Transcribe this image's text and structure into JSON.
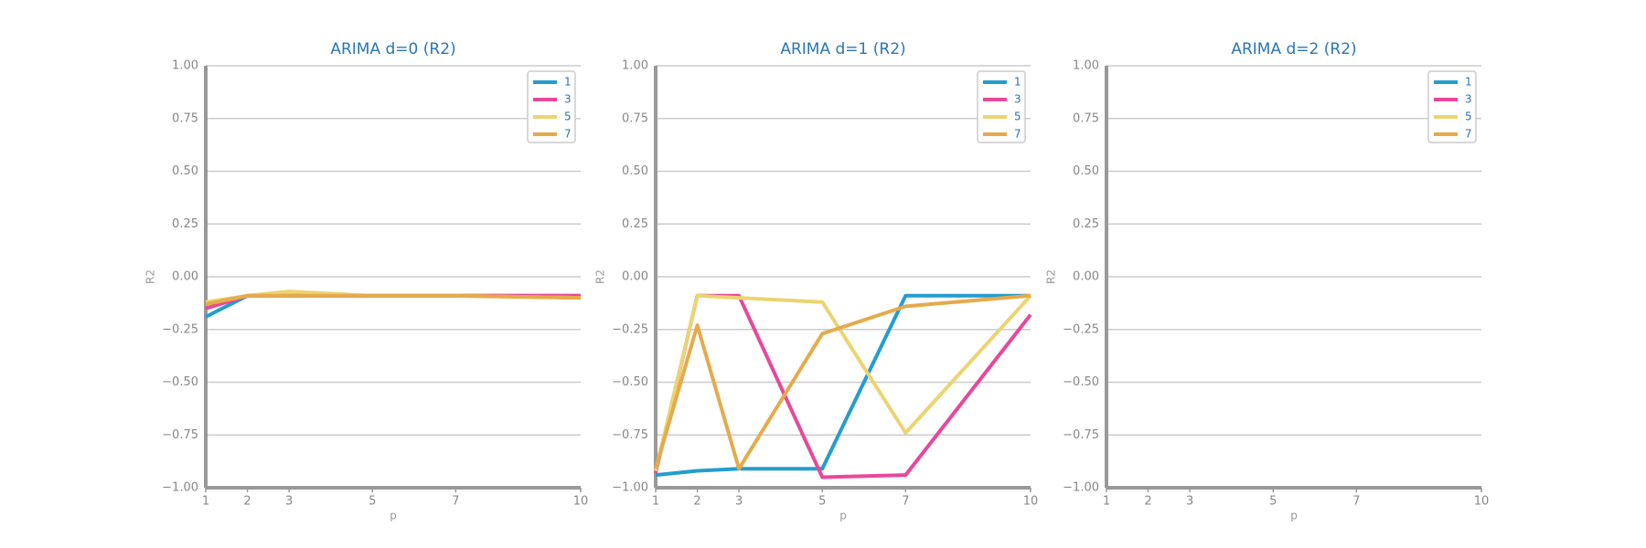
{
  "chart_data": [
    {
      "type": "line",
      "title": "ARIMA d=0 (R2)",
      "x_label": "p",
      "y_label": "R2",
      "x": [
        1,
        2,
        3,
        5,
        7,
        10
      ],
      "xlim": [
        1,
        10
      ],
      "xticks": [
        1,
        2,
        3,
        5,
        7,
        10
      ],
      "ylim": [
        -1,
        1
      ],
      "yticks": [
        {
          "value": -1,
          "label": "−1.00"
        },
        {
          "value": -0.75,
          "label": "−0.75"
        },
        {
          "value": -0.5,
          "label": "−0.50"
        },
        {
          "value": -0.25,
          "label": "−0.25"
        },
        {
          "value": 0,
          "label": "0.00"
        },
        {
          "value": 0.25,
          "label": "0.25"
        },
        {
          "value": 0.5,
          "label": "0.50"
        },
        {
          "value": 0.75,
          "label": "0.75"
        },
        {
          "value": 1,
          "label": "1.00"
        }
      ],
      "grid": true,
      "legend": "upper right",
      "series": [
        {
          "name": "1",
          "color": "#239dcf",
          "values": [
            -0.19,
            -0.09,
            -0.09,
            -0.09,
            -0.09,
            -0.09
          ]
        },
        {
          "name": "3",
          "color": "#e8489b",
          "values": [
            -0.15,
            -0.09,
            -0.09,
            -0.09,
            -0.09,
            -0.09
          ]
        },
        {
          "name": "5",
          "color": "#ebd471",
          "values": [
            -0.12,
            -0.09,
            -0.07,
            -0.09,
            -0.09,
            -0.1
          ]
        },
        {
          "name": "7",
          "color": "#e6aa4b",
          "values": [
            -0.13,
            -0.09,
            -0.09,
            -0.09,
            -0.09,
            -0.1
          ]
        }
      ]
    },
    {
      "type": "line",
      "title": "ARIMA d=1 (R2)",
      "x_label": "p",
      "y_label": "R2",
      "x": [
        1,
        2,
        3,
        5,
        7,
        10
      ],
      "xlim": [
        1,
        10
      ],
      "xticks": [
        1,
        2,
        3,
        5,
        7,
        10
      ],
      "ylim": [
        -1,
        1
      ],
      "yticks": [
        {
          "value": -1,
          "label": "−1.00"
        },
        {
          "value": -0.75,
          "label": "−0.75"
        },
        {
          "value": -0.5,
          "label": "−0.50"
        },
        {
          "value": -0.25,
          "label": "−0.25"
        },
        {
          "value": 0,
          "label": "0.00"
        },
        {
          "value": 0.25,
          "label": "0.25"
        },
        {
          "value": 0.5,
          "label": "0.50"
        },
        {
          "value": 0.75,
          "label": "0.75"
        },
        {
          "value": 1,
          "label": "1.00"
        }
      ],
      "grid": true,
      "legend": "upper right",
      "series": [
        {
          "name": "1",
          "color": "#239dcf",
          "values": [
            -0.94,
            -0.92,
            -0.91,
            -0.91,
            -0.09,
            -0.09
          ]
        },
        {
          "name": "3",
          "color": "#e8489b",
          "values": [
            -0.93,
            -0.09,
            -0.09,
            -0.95,
            -0.94,
            -0.18
          ]
        },
        {
          "name": "5",
          "color": "#ebd471",
          "values": [
            -0.92,
            -0.09,
            -0.1,
            -0.12,
            -0.74,
            -0.09
          ]
        },
        {
          "name": "7",
          "color": "#e6aa4b",
          "values": [
            -0.91,
            -0.23,
            -0.91,
            -0.27,
            -0.14,
            -0.09
          ]
        }
      ]
    },
    {
      "type": "line",
      "title": "ARIMA d=2 (R2)",
      "x_label": "p",
      "y_label": "R2",
      "x": [
        1,
        2,
        3,
        5,
        7,
        10
      ],
      "xlim": [
        1,
        10
      ],
      "xticks": [
        1,
        2,
        3,
        5,
        7,
        10
      ],
      "ylim": [
        -1,
        1
      ],
      "yticks": [
        {
          "value": -1,
          "label": "−1.00"
        },
        {
          "value": -0.75,
          "label": "−0.75"
        },
        {
          "value": -0.5,
          "label": "−0.50"
        },
        {
          "value": -0.25,
          "label": "−0.25"
        },
        {
          "value": 0,
          "label": "0.00"
        },
        {
          "value": 0.25,
          "label": "0.25"
        },
        {
          "value": 0.5,
          "label": "0.50"
        },
        {
          "value": 0.75,
          "label": "0.75"
        },
        {
          "value": 1,
          "label": "1.00"
        }
      ],
      "grid": true,
      "legend": "upper right",
      "series": [
        {
          "name": "1",
          "color": "#239dcf",
          "values": [
            null,
            null,
            null,
            null,
            null,
            null
          ]
        },
        {
          "name": "3",
          "color": "#e8489b",
          "values": [
            null,
            null,
            null,
            null,
            null,
            null
          ]
        },
        {
          "name": "5",
          "color": "#ebd471",
          "values": [
            null,
            null,
            null,
            null,
            null,
            null
          ]
        },
        {
          "name": "7",
          "color": "#e6aa4b",
          "values": [
            null,
            null,
            null,
            null,
            null,
            null
          ]
        }
      ]
    }
  ]
}
